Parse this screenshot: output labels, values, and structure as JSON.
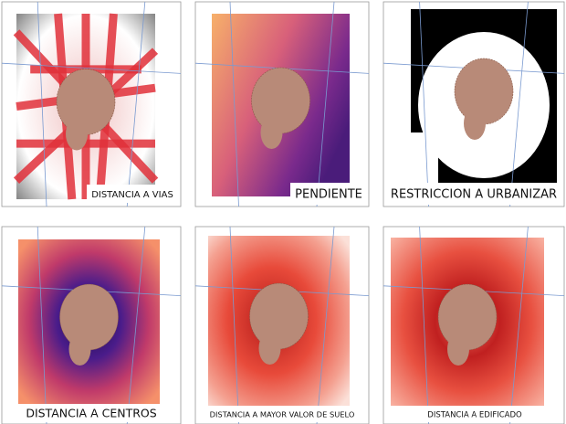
{
  "panels": [
    {
      "label": "DISTANCIA A VIAS"
    },
    {
      "label": "PENDIENTE"
    },
    {
      "label": "RESTRICCION A URBANIZAR"
    },
    {
      "label": "DISTANCIA A CENTROS"
    },
    {
      "label": "DISTANCIA A MAYOR VALOR DE SUELO"
    },
    {
      "label": "DISTANCIA A EDIFICADO"
    }
  ]
}
